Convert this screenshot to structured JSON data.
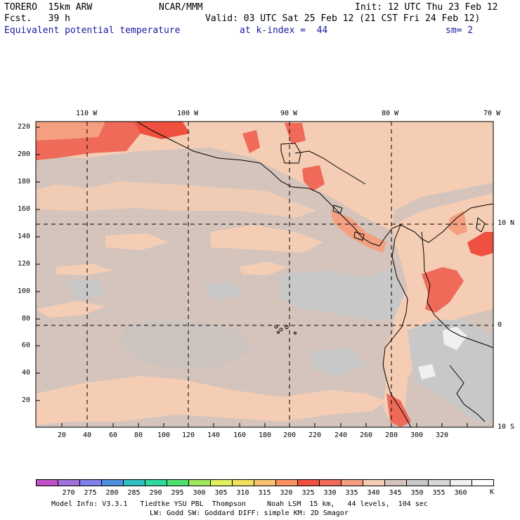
{
  "header": {
    "model": "TORERO  15km ARW",
    "forecast": "Fcst.   39 h",
    "org": "NCAR/MMM",
    "init": "Init: 12 UTC Thu 23 Feb 12",
    "valid": "Valid: 03 UTC Sat 25 Feb 12 (21 CST Fri 24 Feb 12)",
    "field": "Equivalent potential temperature",
    "level": "at k-index =  44",
    "smoothing": "sm= 2"
  },
  "map": {
    "lon_labels": [
      "110 W",
      "100 W",
      "90 W",
      "80 W",
      "70 W"
    ],
    "lat_labels": [
      "10 N",
      "0",
      "10 S"
    ],
    "x_ticks": [
      "20",
      "40",
      "60",
      "80",
      "100",
      "120",
      "140",
      "160",
      "180",
      "200",
      "220",
      "240",
      "260",
      "280",
      "300",
      "320"
    ],
    "y_ticks": [
      "220",
      "200",
      "180",
      "160",
      "140",
      "120",
      "100",
      "80",
      "60",
      "40",
      "20"
    ]
  },
  "colorbar": {
    "labels": [
      "270",
      "275",
      "280",
      "285",
      "290",
      "295",
      "300",
      "305",
      "310",
      "315",
      "320",
      "325",
      "330",
      "335",
      "340",
      "345",
      "350",
      "355",
      "360"
    ],
    "unit": "K",
    "colors": [
      "#c050c8",
      "#a070d8",
      "#8080e8",
      "#5090e0",
      "#30c0c0",
      "#30d8a0",
      "#50e070",
      "#a0e860",
      "#e0f060",
      "#f0e060",
      "#f8c070",
      "#f89060",
      "#f05040",
      "#f06a5a",
      "#f4a080",
      "#f4cdb4",
      "#d4c4bc",
      "#c8c8c8",
      "#d8d8d8",
      "#f0f0f0",
      "#ffffff"
    ]
  },
  "footer": {
    "line1": "Model Info: V3.3.1   Tiedtke YSU PBL  Thompson     Noah LSM  15 km,   44 levels,  104 sec",
    "line2": "LW: Godd SW: Goddard DIFF: simple KM: 2D Smagor"
  }
}
